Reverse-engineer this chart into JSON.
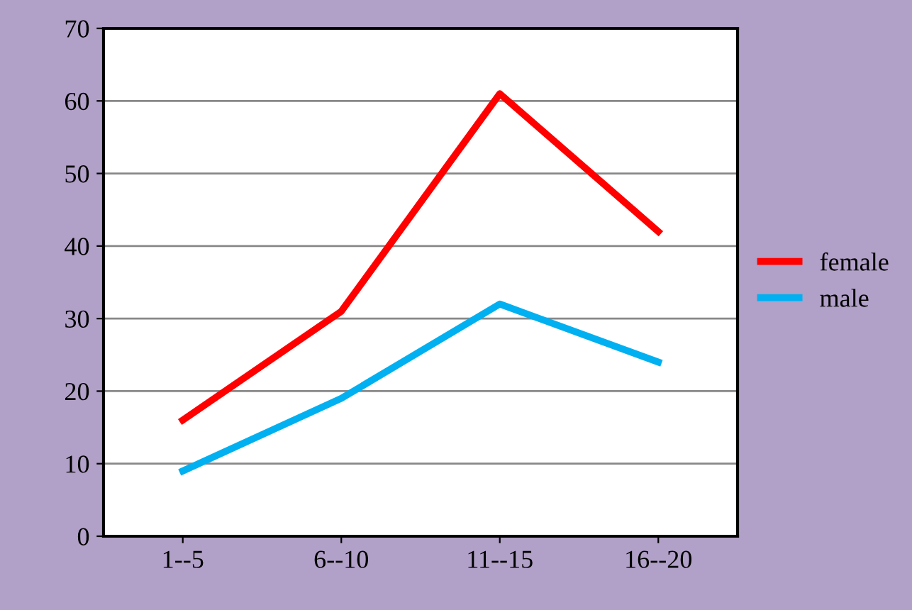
{
  "chart_data": {
    "type": "line",
    "categories": [
      "1--5",
      "6--10",
      "11--15",
      "16--20"
    ],
    "series": [
      {
        "name": "female",
        "color": "#ff0000",
        "values": [
          16,
          31,
          61,
          42
        ]
      },
      {
        "name": "male",
        "color": "#00b0f0",
        "values": [
          9,
          19,
          32,
          24
        ]
      }
    ],
    "ylim": [
      0,
      70
    ],
    "yticks": [
      0,
      10,
      20,
      30,
      40,
      50,
      60,
      70
    ],
    "grid": "y",
    "legend": "right",
    "marker": "none",
    "line_style": "solid"
  }
}
